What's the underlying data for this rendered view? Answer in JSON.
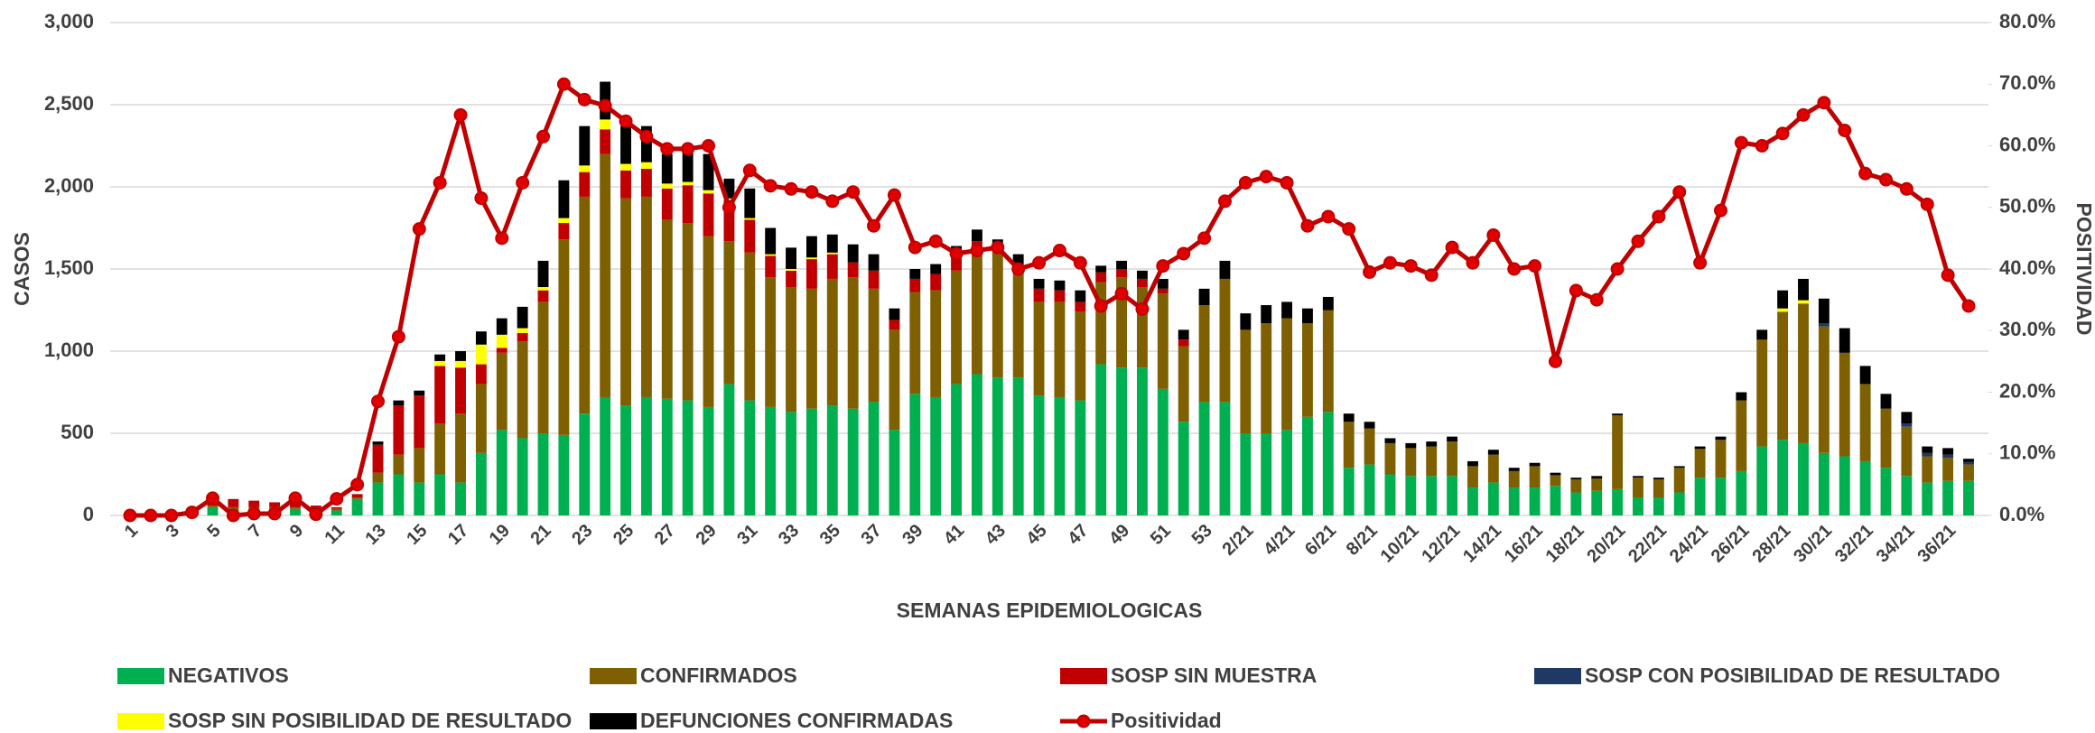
{
  "chart_data": {
    "type": "bar",
    "stacked": true,
    "x_label": "SEMANAS EPIDEMIOLOGICAS",
    "y_label": "CASOS",
    "y2_label": "POSITIVIDAD",
    "categories": [
      "1",
      null,
      "3",
      null,
      "5",
      null,
      "7",
      null,
      "9",
      null,
      "11",
      null,
      "13",
      null,
      "15",
      null,
      "17",
      null,
      "19",
      null,
      "21",
      null,
      "23",
      null,
      "25",
      null,
      "27",
      null,
      "29",
      null,
      "31",
      null,
      "33",
      null,
      "35",
      null,
      "37",
      null,
      "39",
      null,
      "41",
      null,
      "43",
      null,
      "45",
      null,
      "47",
      null,
      "49",
      null,
      "51",
      null,
      "53",
      null,
      "2/21",
      null,
      "4/21",
      null,
      "6/21",
      null,
      "8/21",
      null,
      "10/21",
      null,
      "12/21",
      null,
      "14/21",
      null,
      "16/21",
      null,
      "18/21",
      null,
      "20/21",
      null,
      "22/21",
      null,
      "24/21",
      null,
      "26/21",
      null,
      "28/21",
      null,
      "30/21",
      null,
      "32/21",
      null,
      "34/21",
      null,
      "36/21",
      null
    ],
    "series": [
      {
        "name": "NEGATIVOS",
        "color": "#00b050",
        "values": [
          5,
          5,
          10,
          15,
          50,
          20,
          20,
          30,
          40,
          30,
          30,
          100,
          200,
          250,
          200,
          250,
          200,
          380,
          520,
          470,
          500,
          490,
          620,
          720,
          670,
          720,
          710,
          700,
          660,
          800,
          700,
          660,
          630,
          650,
          670,
          650,
          690,
          520,
          740,
          720,
          800,
          860,
          840,
          840,
          730,
          720,
          700,
          920,
          900,
          900,
          770,
          570,
          690,
          690,
          500,
          500,
          520,
          600,
          630,
          290,
          310,
          250,
          240,
          240,
          240,
          170,
          200,
          170,
          170,
          180,
          140,
          150,
          160,
          110,
          110,
          140,
          230,
          230,
          270,
          420,
          460,
          440,
          380,
          360,
          330,
          290,
          240,
          200,
          210,
          210
        ]
      },
      {
        "name": "CONFIRMADOS",
        "color": "#7f6000",
        "values": [
          0,
          0,
          0,
          5,
          10,
          30,
          30,
          20,
          10,
          10,
          10,
          10,
          60,
          120,
          210,
          310,
          420,
          420,
          470,
          590,
          800,
          1190,
          1320,
          1480,
          1260,
          1220,
          1090,
          1080,
          1040,
          870,
          900,
          790,
          760,
          730,
          770,
          800,
          690,
          610,
          620,
          650,
          690,
          760,
          760,
          630,
          570,
          580,
          540,
          500,
          550,
          490,
          580,
          460,
          590,
          750,
          630,
          670,
          680,
          570,
          620,
          280,
          220,
          190,
          170,
          180,
          210,
          130,
          170,
          100,
          130,
          65,
          80,
          75,
          450,
          120,
          110,
          150,
          175,
          230,
          430,
          650,
          780,
          850,
          770,
          630,
          470,
          360,
          300,
          160,
          140,
          100
        ]
      },
      {
        "name": "SOSP SIN MUESTRA",
        "color": "#c00000",
        "values": [
          0,
          0,
          0,
          0,
          10,
          50,
          40,
          30,
          20,
          20,
          10,
          20,
          170,
          300,
          320,
          350,
          280,
          120,
          30,
          50,
          70,
          100,
          150,
          150,
          170,
          170,
          190,
          230,
          260,
          250,
          200,
          130,
          100,
          180,
          150,
          90,
          110,
          60,
          80,
          100,
          80,
          50,
          40,
          60,
          80,
          70,
          60,
          60,
          50,
          50,
          30,
          40,
          0,
          0,
          0,
          0,
          0,
          0,
          0,
          0,
          0,
          0,
          0,
          0,
          0,
          0,
          0,
          0,
          0,
          0,
          0,
          0,
          0,
          0,
          0,
          0,
          0,
          0,
          0,
          0,
          0,
          0,
          0,
          0,
          0,
          0,
          0,
          0,
          0,
          0
        ]
      },
      {
        "name": "SOSP CON POSIBILIDAD DE RESULTADO",
        "color": "#1f3864",
        "values": [
          0,
          0,
          0,
          0,
          0,
          0,
          0,
          0,
          0,
          0,
          0,
          0,
          0,
          0,
          0,
          0,
          0,
          0,
          0,
          0,
          0,
          0,
          0,
          0,
          0,
          0,
          0,
          0,
          0,
          0,
          0,
          0,
          0,
          0,
          0,
          0,
          0,
          0,
          0,
          0,
          0,
          0,
          0,
          0,
          0,
          0,
          0,
          0,
          0,
          0,
          0,
          0,
          0,
          0,
          0,
          0,
          0,
          0,
          0,
          0,
          0,
          0,
          0,
          0,
          0,
          0,
          0,
          0,
          0,
          0,
          0,
          0,
          0,
          0,
          0,
          0,
          0,
          0,
          0,
          0,
          0,
          0,
          20,
          0,
          0,
          0,
          20,
          20,
          20,
          15
        ]
      },
      {
        "name": "SOSP SIN POSIBILIDAD DE RESULTADO",
        "color": "#ffff00",
        "values": [
          0,
          0,
          0,
          0,
          0,
          0,
          0,
          0,
          0,
          0,
          0,
          0,
          0,
          0,
          0,
          30,
          40,
          120,
          80,
          30,
          20,
          30,
          40,
          60,
          40,
          40,
          30,
          20,
          20,
          10,
          10,
          10,
          10,
          10,
          10,
          0,
          0,
          0,
          0,
          0,
          0,
          0,
          0,
          0,
          0,
          0,
          0,
          0,
          0,
          0,
          0,
          0,
          0,
          0,
          0,
          0,
          0,
          0,
          0,
          0,
          0,
          0,
          0,
          0,
          0,
          0,
          0,
          0,
          0,
          0,
          0,
          0,
          0,
          0,
          0,
          0,
          0,
          0,
          0,
          0,
          20,
          20,
          0,
          0,
          0,
          0,
          0,
          0,
          0,
          0
        ]
      },
      {
        "name": "DEFUNCIONES CONFIRMADAS",
        "color": "#000000",
        "values": [
          0,
          0,
          0,
          0,
          0,
          0,
          0,
          0,
          0,
          0,
          0,
          0,
          20,
          30,
          30,
          40,
          60,
          80,
          100,
          130,
          160,
          230,
          240,
          230,
          230,
          220,
          180,
          180,
          220,
          120,
          180,
          160,
          130,
          130,
          110,
          110,
          100,
          70,
          60,
          60,
          70,
          70,
          40,
          60,
          60,
          60,
          70,
          40,
          50,
          50,
          60,
          60,
          100,
          110,
          100,
          110,
          100,
          90,
          80,
          50,
          40,
          30,
          30,
          30,
          30,
          30,
          30,
          20,
          20,
          15,
          10,
          15,
          10,
          10,
          10,
          10,
          15,
          20,
          50,
          60,
          110,
          130,
          150,
          150,
          110,
          90,
          70,
          40,
          40,
          20
        ]
      },
      {
        "name": "Positividad",
        "color": "#c00000",
        "type": "line",
        "axis": "y2",
        "values": [
          0,
          0,
          0,
          0.5,
          2.8,
          0,
          0.3,
          0.3,
          2.8,
          0.2,
          2.7,
          5,
          18.5,
          29,
          46.5,
          54,
          65,
          51.5,
          45,
          54,
          61.5,
          70,
          67.5,
          66.5,
          64,
          61.5,
          59.5,
          59.5,
          60,
          50,
          56,
          53.5,
          53,
          52.5,
          51,
          52.5,
          47,
          52,
          43.5,
          44.5,
          42.5,
          43,
          43.5,
          40,
          41,
          43,
          41,
          34,
          36,
          33.5,
          40.5,
          42.5,
          45,
          51,
          54,
          55,
          54,
          47,
          48.5,
          46.5,
          39.5,
          41,
          40.5,
          39,
          43.5,
          41,
          45.5,
          40,
          40.5,
          25,
          36.5,
          35,
          40,
          44.5,
          48.5,
          52.5,
          41,
          49.5,
          60.5,
          60,
          62,
          65,
          67,
          62.5,
          55.5,
          54.5,
          53,
          50.5,
          39,
          34
        ]
      }
    ],
    "ylim": [
      0,
      3000
    ],
    "yticks": [
      0,
      500,
      {
        "value": 1000,
        "label": "1,000"
      },
      {
        "value": 1500,
        "label": "1,500"
      },
      {
        "value": 2000,
        "label": "2,000"
      },
      {
        "value": 2500,
        "label": "2,500"
      },
      {
        "value": 3000,
        "label": "3,000"
      }
    ],
    "y2lim": [
      0,
      80
    ],
    "y2ticks": [
      {
        "value": 0,
        "label": "0.0%"
      },
      {
        "value": 10,
        "label": "10.0%"
      },
      {
        "value": 20,
        "label": "20.0%"
      },
      {
        "value": 30,
        "label": "30.0%"
      },
      {
        "value": 40,
        "label": "40.0%"
      },
      {
        "value": 50,
        "label": "50.0%"
      },
      {
        "value": 60,
        "label": "60.0%"
      },
      {
        "value": 70,
        "label": "70.0%"
      },
      {
        "value": 80,
        "label": "80.0%"
      }
    ],
    "grid": true,
    "legend": "bottom"
  }
}
